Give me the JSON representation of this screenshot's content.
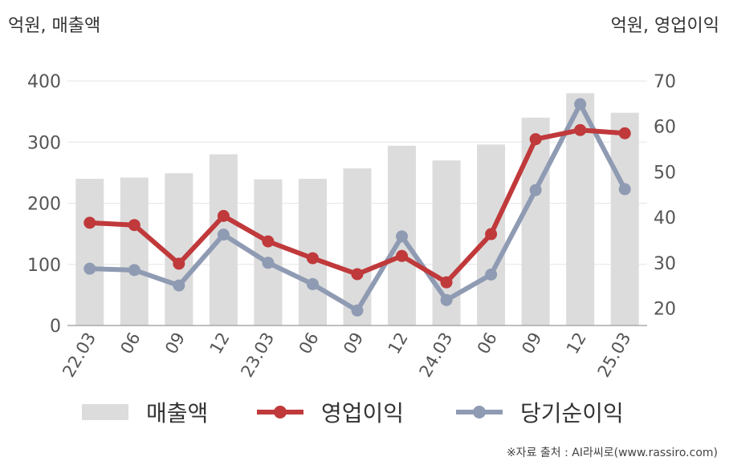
{
  "units": {
    "left": "억원, 매출액",
    "right": "억원, 영업이익"
  },
  "source": "※자료 출처 : AI라씨로(www.rassiro.com)",
  "colors": {
    "bar": "#dcdcdc",
    "operating": "#c0393b",
    "net": "#8f9bb3",
    "grid": "#e6e6e6",
    "axis": "#aaaaaa",
    "text": "#555555"
  },
  "chart_data": {
    "type": "bar",
    "categories": [
      "22.03",
      "06",
      "09",
      "12",
      "23.03",
      "06",
      "09",
      "12",
      "24.03",
      "06",
      "09",
      "12",
      "25.03"
    ],
    "y_left": {
      "ylim": [
        0,
        400
      ],
      "ticks": [
        "0",
        "100",
        "200",
        "300",
        "400"
      ]
    },
    "y_right": {
      "ylim": [
        16.2,
        70
      ],
      "ticks": [
        "20",
        "30",
        "40",
        "50",
        "60",
        "70"
      ]
    },
    "grid": true,
    "legend_position": "bottom",
    "series": [
      {
        "name": "매출액",
        "type": "bar",
        "axis": "left",
        "values": [
          240,
          242,
          249,
          280,
          239,
          240,
          257,
          294,
          270,
          296,
          340,
          380,
          348
        ]
      },
      {
        "name": "영업이익",
        "type": "line",
        "axis": "right",
        "values": [
          38.8,
          38.3,
          29.8,
          40.3,
          34.7,
          31.0,
          27.5,
          31.5,
          25.7,
          36.3,
          57.2,
          59.2,
          58.5
        ]
      },
      {
        "name": "당기순이익",
        "type": "line",
        "axis": "right",
        "values": [
          28.7,
          28.4,
          25.0,
          36.2,
          30.0,
          25.3,
          19.5,
          35.8,
          21.8,
          27.4,
          46.0,
          64.9,
          46.2
        ]
      }
    ]
  }
}
